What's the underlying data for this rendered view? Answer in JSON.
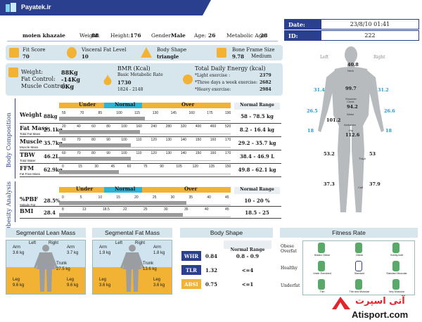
{
  "header": {
    "brand": "Payatek.ir",
    "user_name": "moien khazaie",
    "weight_label": "Weight:",
    "weight_value": "88",
    "height_label": "Height:",
    "height_value": "176",
    "gender_label": "Gender:",
    "gender_value": "Male",
    "age_label": "Age:",
    "age_value": "26",
    "metabolic_age_label": "Metabolic Age:",
    "metabolic_age_value": "28"
  },
  "date_box": {
    "date_label": "Date:",
    "date_value": "23/8/10 01:41",
    "id_label": "ID:",
    "id_value": "222"
  },
  "scores": {
    "fit_score_label": "Fit Score",
    "fit_score_value": "70",
    "visceral_label": "Visceral Fat Level",
    "visceral_value": "10",
    "body_shape_label": "Body Shape",
    "body_shape_value": "triangle",
    "bone_label": "Bone Frame Size",
    "bone_value": "9.78",
    "bone_class": "Medium"
  },
  "weight_panel": {
    "weight_label": "Weight:",
    "weight_value": "88Kg",
    "fat_control_label": "Fat Control:",
    "fat_control_value": "-14Kg",
    "muscle_control_label": "Muscle Control:",
    "muscle_control_value": "0Kg"
  },
  "bmr": {
    "title": "BMR (Kcal)",
    "sub": "Basic Metabolic Rate",
    "value": "1730",
    "range": "1824 - 2148"
  },
  "energy": {
    "title": "Total Daily Energy (kcal)",
    "rows": [
      {
        "label": "*Light exercise :",
        "value": "2379"
      },
      {
        "label": "*Three days a week exercise:",
        "value": "2682"
      },
      {
        "label": "*Heavy exercise:",
        "value": "2984"
      }
    ]
  },
  "composition": {
    "section_label": "Body Composition",
    "under": "Under",
    "normal": "Normal",
    "over": "Over",
    "normal_range": "Normal Range",
    "rows": [
      {
        "name": "Weight",
        "sub": "",
        "value": "88kg",
        "range": "58 - 78.5 kg",
        "fill": 0.5,
        "ticks": [
          "55",
          "70",
          "85",
          "100",
          "115",
          "130",
          "145",
          "160",
          "175",
          "190"
        ]
      },
      {
        "name": "Fat Mass",
        "sub": "Total Fat Mass",
        "value": "25.1kg",
        "range": "8.2 - 16.4 kg",
        "fill": 0.47,
        "ticks": [
          "20",
          "40",
          "60",
          "80",
          "100",
          "160",
          "240",
          "280",
          "320",
          "400",
          "460",
          "520"
        ]
      },
      {
        "name": "Muscle",
        "sub": "Muscle Mass",
        "value": "35.7kg",
        "range": "29.2 - 35.7 kg",
        "fill": 0.42,
        "ticks": [
          "60",
          "70",
          "80",
          "90",
          "100",
          "110",
          "120",
          "130",
          "140",
          "150",
          "160",
          "170"
        ]
      },
      {
        "name": "TBW",
        "sub": "Total Water",
        "value": "46.2L",
        "range": "38.4 - 46.9 L",
        "fill": 0.42,
        "ticks": [
          "60",
          "70",
          "80",
          "90",
          "100",
          "110",
          "120",
          "130",
          "140",
          "150",
          "160",
          "170"
        ]
      },
      {
        "name": "FFM",
        "sub": "Fat Free Mass",
        "value": "62.9kg",
        "range": "49.8 - 62.1 kg",
        "fill": 0.35,
        "ticks": [
          "0",
          "15",
          "30",
          "45",
          "60",
          "75",
          "90",
          "105",
          "120",
          "135",
          "150"
        ]
      }
    ]
  },
  "obesity": {
    "section_label": "Obesity Analysis",
    "under": "Under",
    "normal": "Normal",
    "over": "Over",
    "normal_range": "Normal Range",
    "rows": [
      {
        "name": "%PBF",
        "sub": "%Body Fat",
        "value": "28.5%",
        "range": "10 - 20 %",
        "fill": 0.74,
        "ticks": [
          "0",
          "5",
          "10",
          "15",
          "20",
          "25",
          "30",
          "35",
          "40",
          "45"
        ]
      },
      {
        "name": "BMI",
        "sub": "",
        "value": "28.4",
        "range": "18.5 - 25",
        "fill": 0.72,
        "ticks": [
          "8",
          "13",
          "18.5",
          "22",
          "25",
          "30",
          "35",
          "40",
          "45"
        ]
      }
    ]
  },
  "figure": {
    "left": "Left",
    "right": "Right",
    "neck": "40.8",
    "neck_label": "Neck",
    "shoulder": "99.7",
    "shoulder_label": "Shoulder",
    "chest": "94.2",
    "chest_label": "Chest",
    "waist": "101.2",
    "waist_label": "Waist",
    "abdomen_label": "Abdomen",
    "hip": "112.6",
    "hip_label": "Hip",
    "arm_l": "31.4",
    "arm_r": "31.2",
    "forearm_l": "26.5",
    "forearm_r": "26.6",
    "wrist_l": "18",
    "wrist_r": "18",
    "thigh_l": "53.2",
    "thigh_r": "53",
    "thigh_label": "Thigh",
    "calf_l": "37.3",
    "calf_r": "37.9",
    "calf_label": "Calf"
  },
  "segmental_lean": {
    "title": "Segmental Lean Mass",
    "left": "Left",
    "right": "Right",
    "arm_l_label": "Arm",
    "arm_l": "3.6 kg",
    "arm_r_label": "Arm",
    "arm_r": "3.7 kg",
    "trunk_label": "Trunk",
    "trunk": "27.5 kg",
    "leg_l_label": "Leg",
    "leg_l": "9.6 kg",
    "leg_r_label": "Leg",
    "leg_r": "9.6 kg"
  },
  "segmental_fat": {
    "title": "Segmental Fat Mass",
    "left": "Left",
    "right": "Right",
    "arm_l_label": "Arm",
    "arm_l": "1.9 kg",
    "arm_r_label": "Arm",
    "arm_r": "1.8 kg",
    "trunk_label": "Trunk",
    "trunk": "13.6 kg",
    "leg_l_label": "Leg",
    "leg_l": "3.6 kg",
    "leg_r_label": "Leg",
    "leg_r": "3.6 kg"
  },
  "body_shape": {
    "title": "Body Shape",
    "normal_range": "Normal Range",
    "rows": [
      {
        "name": "WHR",
        "value": "0.84",
        "range": "0.8 - 0.9",
        "color": "#2b3f8f"
      },
      {
        "name": "TLR",
        "value": "1.32",
        "range": "<=4",
        "color": "#2b3f8f"
      },
      {
        "name": "ABSI",
        "value": "0.75",
        "range": "<=1",
        "color": "#f2b233"
      }
    ]
  },
  "fitness": {
    "title": "Fitness Rate",
    "rows": [
      "Obese Overfat",
      "Healthy",
      "Underfat"
    ],
    "cells": [
      "Hidden Obese",
      "Obese",
      "Solidly-built",
      "Under Exercised",
      "Standard",
      "Standard Muscular",
      "Thin",
      "Thin and Muscular",
      "Very Muscular"
    ]
  },
  "watermark": {
    "persian": "آتی اسپرت",
    "latin": "Atisport.com"
  },
  "colors": {
    "navy": "#2b3f8f",
    "orange": "#f2b233",
    "cyan": "#29b6d6",
    "panel": "#d6e6ec"
  }
}
